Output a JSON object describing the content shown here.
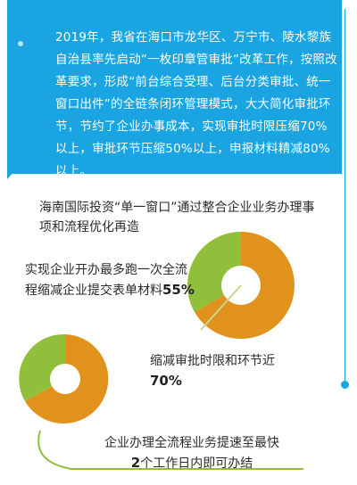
{
  "intro": "2019年，我省在海口市龙华区、万宁市、陵水黎族自治县率先启动“一枚印章管审批”改革工作，按照改革要求，形成“前台综合受理、后台分类审批、统一窗口出件”的全链条闭环管理模式，大大简化审批环节，节约了企业办事成本，实现审批时限压缩70%以上，审批环节压缩50%以上，申报材料精减80%以上。",
  "section_title": "海南国际投资“单一窗口”通过整合企业业务办理事项和流程优化再造",
  "stats": [
    {
      "text": "实现企业开办最多跑一次全流程缩减企业提交表单材料",
      "value": "55%"
    },
    {
      "text": "缩减审批时限和环节近",
      "value": "70%"
    },
    {
      "text_before": "企业办理全流程业务提速至最快",
      "value": "2",
      "text_after": "个工作日内即可办结"
    }
  ],
  "colors": {
    "blue": "#1aa4e1",
    "orange": "#e0921c",
    "green": "#8fbf3b",
    "light_green": "#c6d88b"
  }
}
